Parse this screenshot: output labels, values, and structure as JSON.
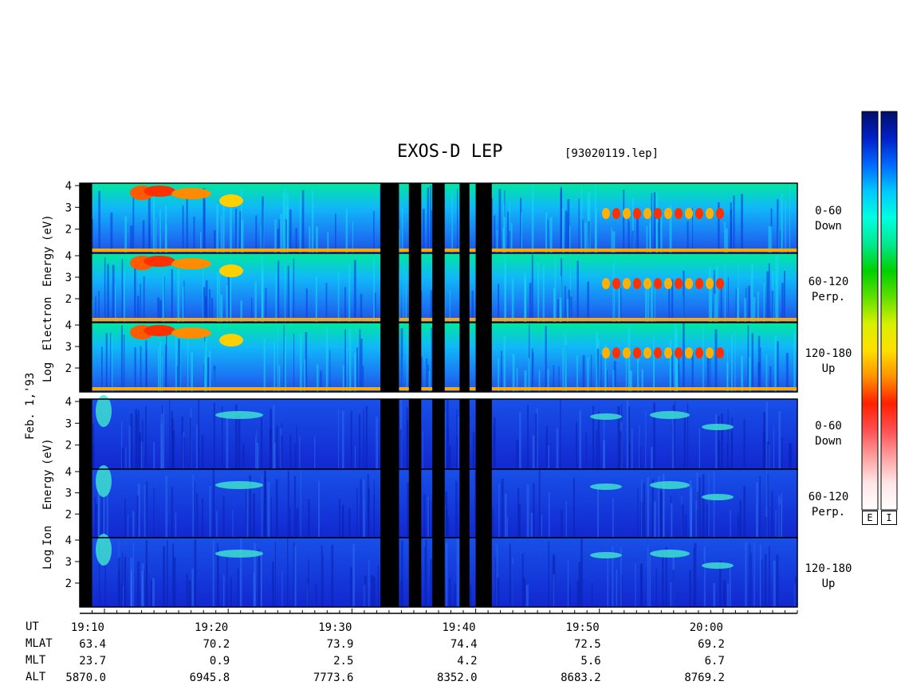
{
  "header": {
    "title": "EXOS-D LEP",
    "file": "[93020119.lep]"
  },
  "colors": {
    "background": "#ffffff",
    "ion_base": "#1530d8",
    "electron_base": "#1a6ef0",
    "data_gap": "#000000"
  },
  "chart_data": {
    "type": "heatmap",
    "title": "EXOS-D LEP",
    "date_label": "Feb. 1,'93",
    "electron": {
      "ylabel_words": [
        "Log",
        "Electron",
        "Energy",
        "(eV)"
      ],
      "panels": [
        {
          "pitch": "0-60",
          "dir": "Down"
        },
        {
          "pitch": "60-120",
          "dir": "Perp."
        },
        {
          "pitch": "120-180",
          "dir": "Up"
        }
      ]
    },
    "ion": {
      "ylabel_words": [
        "Log",
        "Ion",
        "Energy",
        "(eV)"
      ],
      "panels": [
        {
          "pitch": "0-60",
          "dir": "Down"
        },
        {
          "pitch": "60-120",
          "dir": "Perp."
        },
        {
          "pitch": "120-180",
          "dir": "Up"
        }
      ]
    },
    "y_ticks": [
      "4",
      "3",
      "2"
    ],
    "ylim": [
      1,
      4
    ],
    "x_ticks": [
      "19:10",
      "19:20",
      "19:30",
      "19:40",
      "19:50",
      "20:00"
    ],
    "xlim": [
      "19:08",
      "20:06"
    ],
    "data_gaps": [
      [
        "19:08",
        "19:09"
      ],
      [
        "19:32.3",
        "19:33.8"
      ],
      [
        "19:34.6",
        "19:35.6"
      ],
      [
        "19:36.5",
        "19:37.5"
      ],
      [
        "19:38.7",
        "19:39.5"
      ],
      [
        "19:40",
        "19:41.3"
      ]
    ],
    "ephemeris": {
      "labels": [
        "UT",
        "MLAT",
        "MLT",
        "ALT"
      ],
      "rows": [
        [
          "63.4",
          "70.2",
          "73.9",
          "74.4",
          "72.5",
          "69.2"
        ],
        [
          "23.7",
          "0.9",
          "2.5",
          "4.2",
          "5.6",
          "6.7"
        ],
        [
          "5870.0",
          "6945.8",
          "7773.6",
          "8352.0",
          "8683.2",
          "8769.2"
        ]
      ]
    },
    "colorbar": {
      "keys": [
        "E",
        "I"
      ],
      "colors": [
        "#000e6a",
        "#0020c8",
        "#0068ff",
        "#00c8ff",
        "#00ffe0",
        "#00e890",
        "#00d000",
        "#60e000",
        "#d8f000",
        "#ffe000",
        "#ff9000",
        "#ff2000",
        "#ff5050",
        "#ffa0a0",
        "#ffe6e6",
        "#ffffff"
      ]
    }
  }
}
